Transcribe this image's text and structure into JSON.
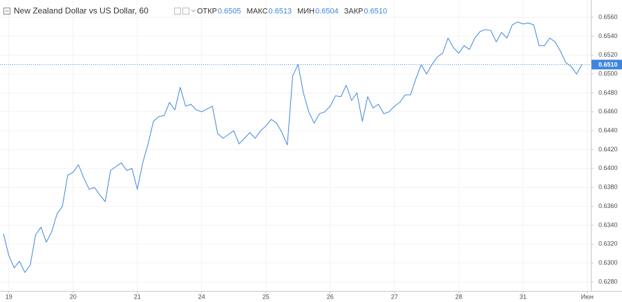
{
  "chart_data": {
    "type": "line",
    "title": "New Zealand Dollar vs US Dollar, 60",
    "ohlc": [
      {
        "label": "ОТКР",
        "value": "0.6505"
      },
      {
        "label": "МАКС",
        "value": "0.6513"
      },
      {
        "label": "МИН",
        "value": "0.6504"
      },
      {
        "label": "ЗАКР",
        "value": "0.6510"
      }
    ],
    "categories": [
      null,
      "19",
      null,
      null,
      null,
      null,
      null,
      null,
      null,
      null,
      null,
      null,
      null,
      "20",
      null,
      null,
      null,
      null,
      null,
      null,
      null,
      null,
      null,
      null,
      null,
      "21",
      null,
      null,
      null,
      null,
      null,
      null,
      null,
      null,
      null,
      null,
      null,
      "24",
      null,
      null,
      null,
      null,
      null,
      null,
      null,
      null,
      null,
      null,
      null,
      "25",
      null,
      null,
      null,
      null,
      null,
      null,
      null,
      null,
      null,
      null,
      null,
      "26",
      null,
      null,
      null,
      null,
      null,
      null,
      null,
      null,
      null,
      null,
      null,
      "27",
      null,
      null,
      null,
      null,
      null,
      null,
      null,
      null,
      null,
      null,
      null,
      "28",
      null,
      null,
      null,
      null,
      null,
      null,
      null,
      null,
      null,
      null,
      null,
      "31",
      null,
      null,
      null,
      null,
      null,
      null,
      null,
      null,
      null,
      null,
      null,
      "Июн"
    ],
    "series": [
      {
        "color": "#3d85e0",
        "values": [
          0.6331,
          0.6308,
          0.6295,
          0.6302,
          0.629,
          0.6298,
          0.633,
          0.6338,
          0.6322,
          0.6333,
          0.6352,
          0.636,
          0.6393,
          0.6396,
          0.6404,
          0.639,
          0.6378,
          0.638,
          0.6372,
          0.6365,
          0.6398,
          0.6402,
          0.6406,
          0.6398,
          0.64,
          0.6378,
          0.6406,
          0.6426,
          0.645,
          0.6455,
          0.6456,
          0.647,
          0.6462,
          0.6486,
          0.6466,
          0.6468,
          0.6462,
          0.646,
          0.6463,
          0.6466,
          0.6437,
          0.6432,
          0.6436,
          0.644,
          0.6426,
          0.6432,
          0.6438,
          0.6432,
          0.644,
          0.6445,
          0.6452,
          0.6448,
          0.6438,
          0.6425,
          0.6498,
          0.651,
          0.648,
          0.646,
          0.6448,
          0.6458,
          0.646,
          0.6466,
          0.6477,
          0.6476,
          0.6488,
          0.6472,
          0.648,
          0.645,
          0.6476,
          0.6464,
          0.6468,
          0.6458,
          0.646,
          0.6466,
          0.647,
          0.6478,
          0.6478,
          0.6495,
          0.651,
          0.65,
          0.651,
          0.6518,
          0.6522,
          0.6538,
          0.6528,
          0.6522,
          0.653,
          0.6526,
          0.6538,
          0.6545,
          0.6547,
          0.6546,
          0.6534,
          0.6544,
          0.6538,
          0.6552,
          0.6555,
          0.6553,
          0.6554,
          0.6552,
          0.653,
          0.653,
          0.6538,
          0.6534,
          0.6524,
          0.6512,
          0.6508,
          0.65,
          0.651,
          null
        ]
      }
    ],
    "ylim": [
      0.62705,
      0.65783
    ],
    "yticks": [
      {
        "value": 0.628,
        "label": "0.6280"
      },
      {
        "value": 0.63,
        "label": "0.6300"
      },
      {
        "value": 0.632,
        "label": "0.6320"
      },
      {
        "value": 0.634,
        "label": "0.6340"
      },
      {
        "value": 0.636,
        "label": "0.6360"
      },
      {
        "value": 0.638,
        "label": "0.6380"
      },
      {
        "value": 0.64,
        "label": "0.6400"
      },
      {
        "value": 0.642,
        "label": "0.6420"
      },
      {
        "value": 0.644,
        "label": "0.6440"
      },
      {
        "value": 0.646,
        "label": "0.6460"
      },
      {
        "value": 0.648,
        "label": "0.6480"
      },
      {
        "value": 0.65,
        "label": "0.6500"
      },
      {
        "value": 0.652,
        "label": "0.6520"
      },
      {
        "value": 0.654,
        "label": "0.6540"
      },
      {
        "value": 0.656,
        "label": "0.6560"
      }
    ],
    "last_price": {
      "value": 0.651,
      "label": "0.6510"
    },
    "grid": true
  }
}
